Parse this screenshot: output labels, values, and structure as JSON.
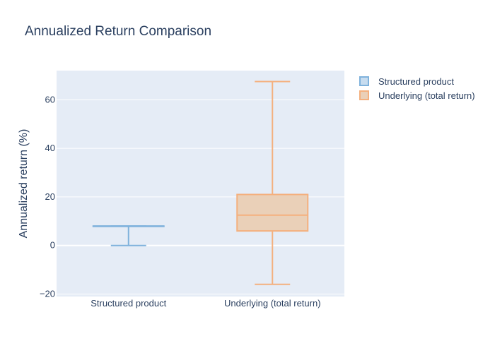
{
  "chart_data": {
    "type": "box",
    "title": "Annualized Return Comparison",
    "xlabel": "",
    "ylabel": "Annualized return (%)",
    "ylim": [
      -21,
      72
    ],
    "yticks": [
      -20,
      0,
      20,
      40,
      60
    ],
    "ytick_labels": [
      "−20",
      "0",
      "20",
      "40",
      "60"
    ],
    "categories": [
      "Structured product",
      "Underlying (total return)"
    ],
    "series": [
      {
        "name": "Structured product",
        "color": "#7fb2dc",
        "fill": "#c7dcef",
        "stats": {
          "min": 0,
          "q1": 8,
          "median": 8,
          "q3": 8,
          "max": 8
        }
      },
      {
        "name": "Underlying (total return)",
        "color": "#f4b07e",
        "fill": "#ead0b8",
        "stats": {
          "min": -16,
          "q1": 6,
          "median": 12.5,
          "q3": 21,
          "max": 67.5
        }
      }
    ],
    "grid": true,
    "legend": "top-right",
    "plot_background": "#e5ecf6"
  }
}
